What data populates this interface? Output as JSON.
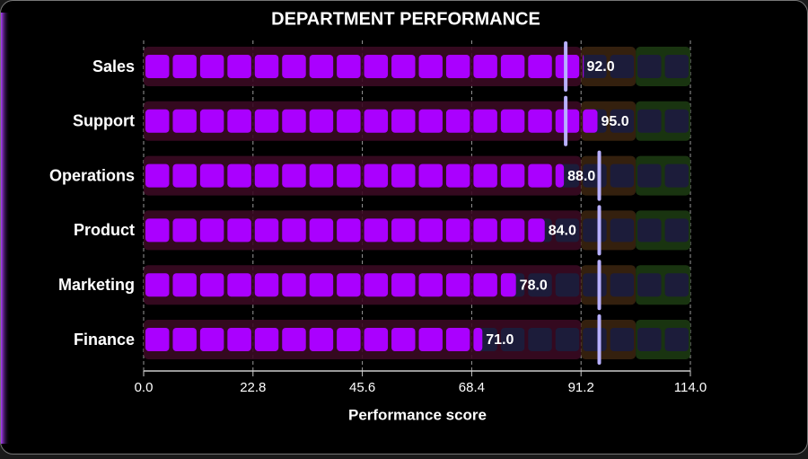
{
  "chart_data": {
    "type": "bullet",
    "title": "DEPARTMENT PERFORMANCE",
    "x_label": "Performance score",
    "categories": [
      "Sales",
      "Support",
      "Operations",
      "Product",
      "Marketing",
      "Finance"
    ],
    "values": [
      92.0,
      95.0,
      88.0,
      84.0,
      78.0,
      71.0
    ],
    "value_labels": [
      "92.0",
      "95.0",
      "88.0",
      "84.0",
      "78.0",
      "71.0"
    ],
    "targets": [
      88,
      88,
      95,
      95,
      95,
      95
    ],
    "ranges": [
      91.2,
      102.6,
      114
    ],
    "range_colors": [
      "#3a0a22",
      "#3a2410",
      "#1c3a12"
    ],
    "color": "#aa00ff",
    "target_color": "#b8b0ff",
    "xlim": [
      0,
      114
    ],
    "xticks": [
      {
        "value": 0,
        "label": "0.0"
      },
      {
        "value": 22.8,
        "label": "22.8"
      },
      {
        "value": 45.6,
        "label": "45.6"
      },
      {
        "value": 68.4,
        "label": "68.4"
      },
      {
        "value": 91.2,
        "label": "91.2"
      },
      {
        "value": 114,
        "label": "114.0"
      }
    ],
    "grid": true
  }
}
